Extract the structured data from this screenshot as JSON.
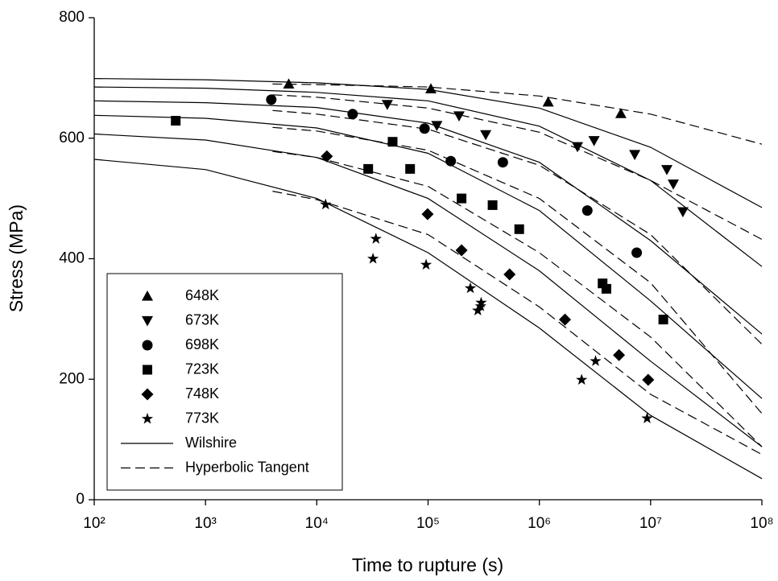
{
  "chart_data": {
    "type": "scatter",
    "x_label": "Time to rupture (s)",
    "y_label": "Stress (MPa)",
    "x_log": true,
    "xlim": [
      100,
      100000000
    ],
    "ylim": [
      0,
      800
    ],
    "xticks": [
      {
        "value": 100,
        "label": "10²"
      },
      {
        "value": 1000,
        "label": "10³"
      },
      {
        "value": 10000,
        "label": "10⁴"
      },
      {
        "value": 100000,
        "label": "10⁵"
      },
      {
        "value": 1000000,
        "label": "10⁶"
      },
      {
        "value": 10000000,
        "label": "10⁷"
      },
      {
        "value": 100000000,
        "label": "10⁸"
      }
    ],
    "yticks": [
      0,
      200,
      400,
      600,
      800
    ],
    "color": "#000000",
    "series": [
      {
        "name": "648K",
        "marker": "triangle-up",
        "x": [
          5600,
          106000,
          1200000,
          5400000
        ],
        "values": [
          690,
          682,
          660,
          641
        ]
      },
      {
        "name": "673K",
        "marker": "triangle-down",
        "x": [
          43000,
          120000,
          190000,
          330000,
          2200000,
          3100000,
          7200000,
          14000000,
          16000000,
          19500000
        ],
        "values": [
          656,
          621,
          637,
          606,
          586,
          596,
          573,
          548,
          524,
          478
        ]
      },
      {
        "name": "698K",
        "marker": "circle",
        "x": [
          3900,
          21000,
          93000,
          160000,
          470000,
          2700000,
          7500000
        ],
        "values": [
          664,
          640,
          616,
          562,
          560,
          480,
          410
        ]
      },
      {
        "name": "723K",
        "marker": "square",
        "x": [
          540,
          29000,
          48000,
          69000,
          200000,
          380000,
          660000,
          3700000,
          4000000,
          13000000
        ],
        "values": [
          629,
          549,
          594,
          549,
          500,
          489,
          449,
          359,
          350,
          299
        ]
      },
      {
        "name": "748K",
        "marker": "diamond",
        "x": [
          12300,
          99000,
          200000,
          540000,
          1700000,
          5200000,
          9500000
        ],
        "values": [
          570,
          474,
          414,
          374,
          299,
          240,
          199
        ]
      },
      {
        "name": "773K",
        "marker": "star",
        "x": [
          12000,
          34000,
          32000,
          96000,
          240000,
          300000,
          297000,
          280000,
          2400000,
          3200000,
          9300000
        ],
        "values": [
          490,
          433,
          400,
          390,
          351,
          327,
          321,
          314,
          199,
          230,
          135
        ]
      }
    ],
    "fits": [
      {
        "name": "Wilshire",
        "dashed": false,
        "lines": [
          {
            "x": [
              100,
              1000,
              10000,
              100000,
              1000000,
              10000000,
              100000000
            ],
            "values": [
              699,
              697,
              692,
              681,
              650,
              585,
              485
            ]
          },
          {
            "x": [
              100,
              1000,
              10000,
              100000,
              1000000,
              10000000,
              100000000
            ],
            "values": [
              685,
              683,
              676,
              662,
              620,
              530,
              387
            ]
          },
          {
            "x": [
              100,
              1000,
              10000,
              100000,
              1000000,
              10000000,
              100000000
            ],
            "values": [
              662,
              659,
              651,
              625,
              560,
              430,
              275
            ]
          },
          {
            "x": [
              100,
              1000,
              10000,
              100000,
              1000000,
              10000000,
              100000000
            ],
            "values": [
              638,
              633,
              617,
              575,
              480,
              330,
              168
            ]
          },
          {
            "x": [
              100,
              1000,
              10000,
              100000,
              1000000,
              10000000,
              100000000
            ],
            "values": [
              607,
              597,
              568,
              500,
              380,
              230,
              88
            ]
          },
          {
            "x": [
              100,
              1000,
              10000,
              100000,
              1000000,
              10000000,
              100000000
            ],
            "values": [
              565,
              548,
              500,
              410,
              285,
              140,
              35
            ]
          }
        ]
      },
      {
        "name": "Hyperbolic Tangent",
        "dashed": true,
        "lines": [
          {
            "x": [
              4000,
              10000,
              100000,
              1000000,
              10000000,
              100000000
            ],
            "values": [
              690,
              689,
              685,
              670,
              640,
              590
            ]
          },
          {
            "x": [
              4000,
              10000,
              100000,
              1000000,
              10000000,
              100000000
            ],
            "values": [
              672,
              668,
              650,
              610,
              530,
              432
            ]
          },
          {
            "x": [
              4000,
              10000,
              100000,
              1000000,
              10000000,
              100000000
            ],
            "values": [
              646,
              640,
              615,
              555,
              440,
              258
            ]
          },
          {
            "x": [
              4000,
              10000,
              100000,
              1000000,
              10000000,
              100000000
            ],
            "values": [
              618,
              612,
              580,
              500,
              360,
              143
            ]
          },
          {
            "x": [
              4000,
              10000,
              100000,
              1000000,
              10000000,
              100000000
            ],
            "values": [
              578,
              568,
              520,
              410,
              270,
              88
            ]
          },
          {
            "x": [
              4000,
              10000,
              100000,
              1000000,
              10000000,
              100000000
            ],
            "values": [
              512,
              498,
              440,
              320,
              175,
              75
            ]
          }
        ]
      }
    ]
  }
}
